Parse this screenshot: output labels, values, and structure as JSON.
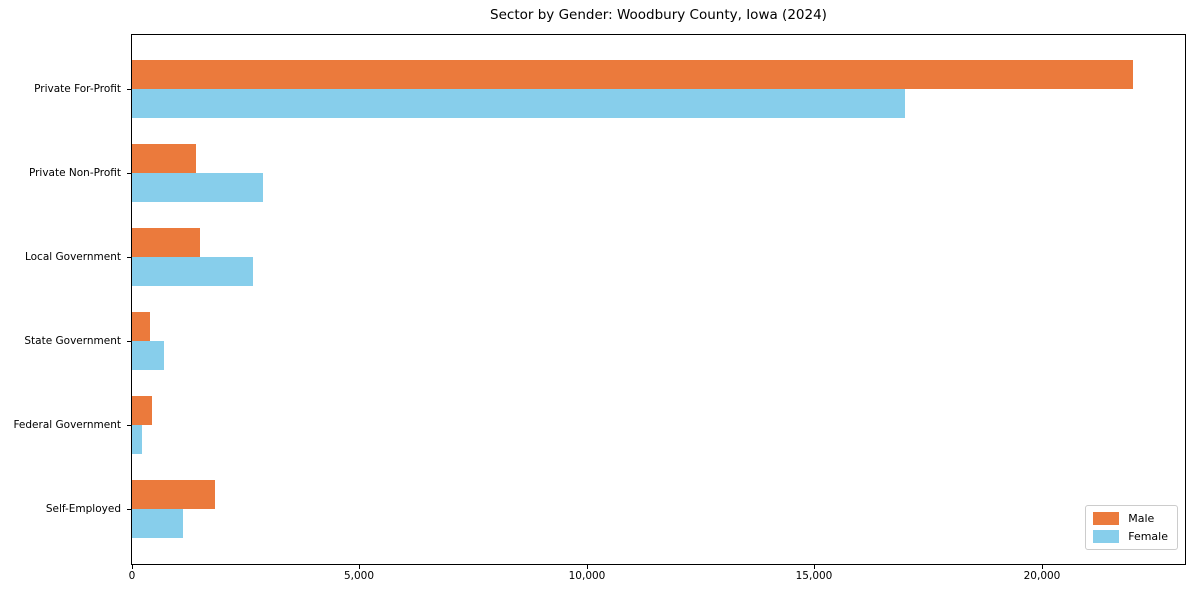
{
  "title": "Sector by Gender: Woodbury County, Iowa (2024)",
  "chart_data": {
    "type": "bar",
    "orientation": "horizontal",
    "title": "Sector by Gender: Woodbury County, Iowa (2024)",
    "categories": [
      "Private For-Profit",
      "Private Non-Profit",
      "Local Government",
      "State Government",
      "Federal Government",
      "Self-Employed"
    ],
    "series": [
      {
        "name": "Male",
        "color": "#eb7a3c",
        "values": [
          22000,
          1410,
          1500,
          390,
          450,
          1830
        ]
      },
      {
        "name": "Female",
        "color": "#87ceeb",
        "values": [
          17000,
          2890,
          2660,
          710,
          230,
          1130
        ]
      }
    ],
    "xlabel": "",
    "ylabel": "",
    "xlim": [
      0,
      23150
    ],
    "xticks": [
      0,
      5000,
      10000,
      15000,
      20000
    ],
    "xtick_labels": [
      "0",
      "5,000",
      "10,000",
      "15,000",
      "20,000"
    ],
    "grid": false,
    "legend": {
      "position": "lower right",
      "labels": [
        "Male",
        "Female"
      ]
    }
  }
}
